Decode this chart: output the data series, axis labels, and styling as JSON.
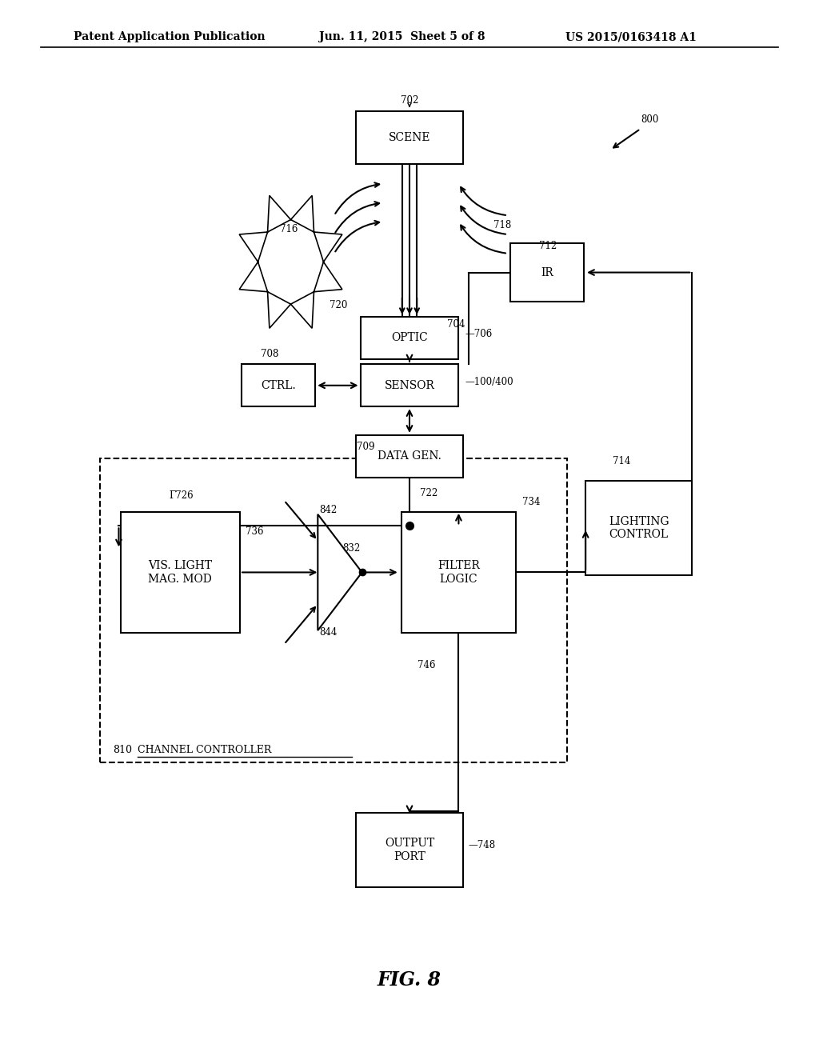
{
  "title_left": "Patent Application Publication",
  "title_center": "Jun. 11, 2015  Sheet 5 of 8",
  "title_right": "US 2015/0163418 A1",
  "fig_label": "FIG. 8",
  "bg_color": "#ffffff"
}
